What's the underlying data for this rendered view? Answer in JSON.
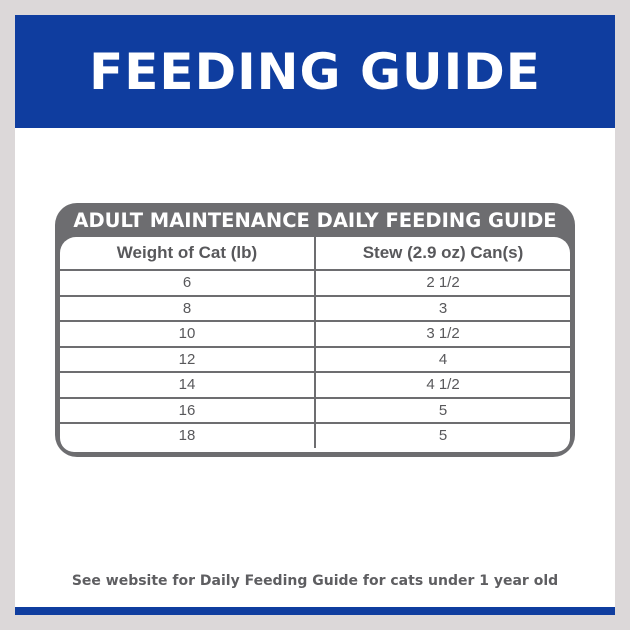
{
  "header": {
    "title": "FEEDING GUIDE"
  },
  "table": {
    "title": "ADULT MAINTENANCE DAILY FEEDING GUIDE",
    "columns": [
      "Weight of Cat (lb)",
      "Stew (2.9 oz) Can(s)"
    ],
    "rows": [
      [
        "6",
        "2 1/2"
      ],
      [
        "8",
        "3"
      ],
      [
        "10",
        "3 1/2"
      ],
      [
        "12",
        "4"
      ],
      [
        "14",
        "4 1/2"
      ],
      [
        "16",
        "5"
      ],
      [
        "18",
        "5"
      ]
    ]
  },
  "footer": {
    "note": "See website for Daily Feeding Guide for cats under 1 year old"
  },
  "colors": {
    "brand_blue": "#0f3d9f",
    "table_gray": "#6d6d70"
  }
}
